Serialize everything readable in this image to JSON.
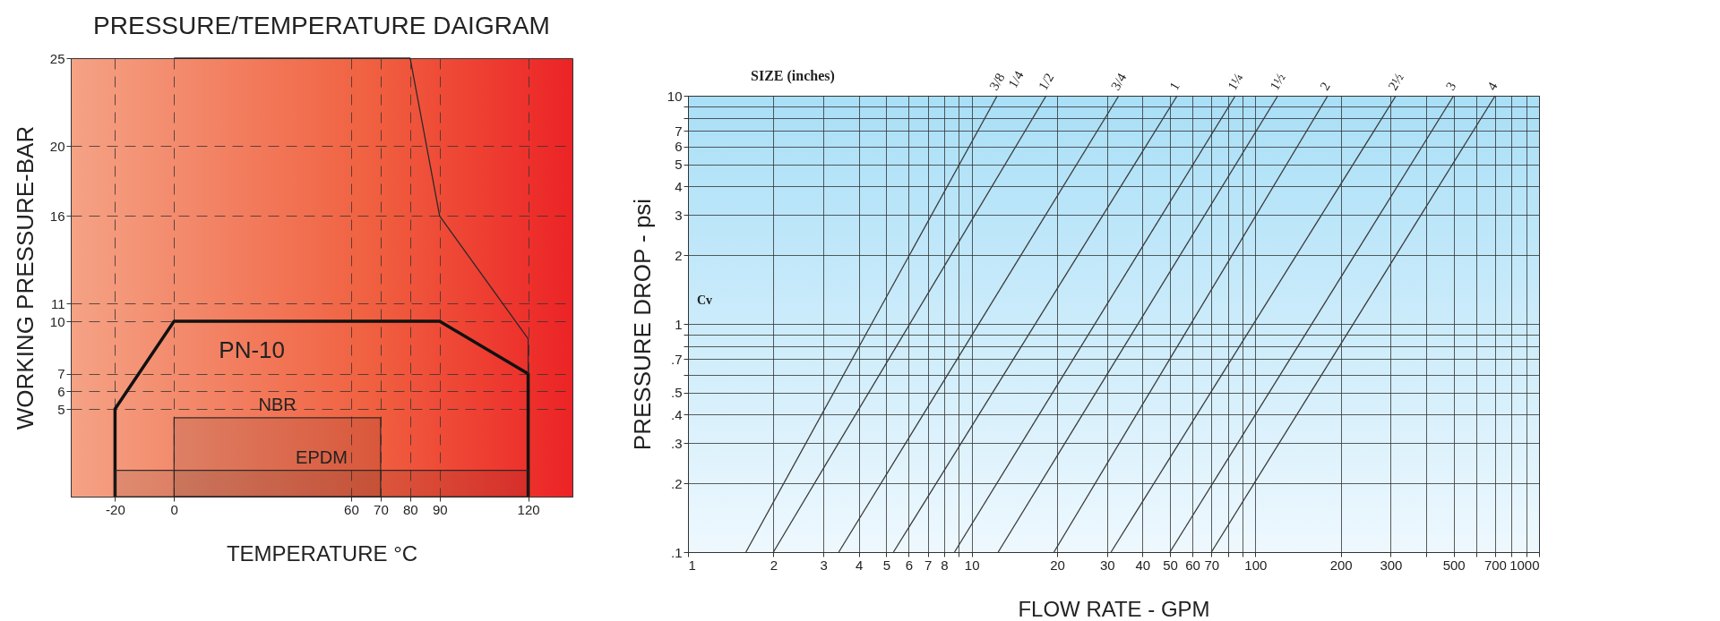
{
  "chart_data": [
    {
      "type": "line",
      "title": "PRESSURE/TEMPERATURE DAIGRAM",
      "xlabel": "TEMPERATURE °C",
      "ylabel": "WORKING PRESSURE-BAR",
      "xlim": [
        -35,
        135
      ],
      "xticks": [
        -20,
        0,
        60,
        70,
        80,
        90,
        120
      ],
      "ylim": [
        0,
        25
      ],
      "yticks": [
        5,
        6,
        7,
        10,
        11,
        16,
        20,
        25
      ],
      "grid": true,
      "series": [
        {
          "name": "PN-10",
          "color": "#111111",
          "x": [
            -20,
            -20,
            0,
            90,
            120,
            120
          ],
          "values": [
            0,
            5,
            10,
            10,
            7,
            0
          ]
        },
        {
          "color": "#2a2a2a",
          "x": [
            0,
            80,
            90,
            120,
            120
          ],
          "values": [
            25,
            25,
            16,
            9,
            7
          ]
        }
      ],
      "bands": [
        {
          "axis": "x",
          "from": 0,
          "to": 70,
          "label": "NBR"
        },
        {
          "axis": "x",
          "from": -20,
          "to": 120,
          "label": "EPDM"
        }
      ]
    },
    {
      "type": "line",
      "xlabel": "FLOW RATE - GPM",
      "ylabel": "PRESSURE DROP - psi",
      "log": "xy",
      "grid": true,
      "xlim": [
        1,
        1000
      ],
      "xticks": [
        1,
        2,
        3,
        4,
        5,
        6,
        7,
        8,
        {
          "value": 9,
          "label": null
        },
        10,
        20,
        30,
        40,
        50,
        60,
        70,
        {
          "value": 80,
          "label": null
        },
        {
          "value": 90,
          "label": null
        },
        100,
        200,
        300,
        {
          "value": 400,
          "label": null
        },
        500,
        {
          "value": 600,
          "label": null
        },
        700,
        {
          "value": 800,
          "label": null
        },
        {
          "value": 900,
          "label": null
        },
        1000
      ],
      "ylim": [
        0.1,
        10
      ],
      "yticks": [
        {
          "value": 0.1,
          "label": ".1"
        },
        {
          "value": 0.2,
          "label": ".2"
        },
        {
          "value": 0.3,
          "label": ".3"
        },
        {
          "value": 0.4,
          "label": ".4"
        },
        {
          "value": 0.5,
          "label": ".5"
        },
        {
          "value": 0.6,
          "label": null
        },
        {
          "value": 0.7,
          "label": ".7"
        },
        {
          "value": 0.8,
          "label": null
        },
        {
          "value": 0.9,
          "label": null
        },
        1,
        2,
        3,
        4,
        5,
        6,
        7,
        {
          "value": 8,
          "label": null
        },
        {
          "value": 9,
          "label": null
        },
        10
      ],
      "series": [
        {
          "name": "3/8",
          "color": "#3a3a3a",
          "x": [
            1.6,
            12.3
          ],
          "values": [
            0.1,
            10
          ]
        },
        {
          "name": "1/2",
          "color": "#3a3a3a",
          "x": [
            2,
            18.3
          ],
          "values": [
            0.1,
            10
          ]
        },
        {
          "name": "3/4",
          "color": "#3a3a3a",
          "x": [
            3.4,
            33
          ],
          "values": [
            0.1,
            10
          ]
        },
        {
          "name": "1",
          "color": "#3a3a3a",
          "x": [
            5.3,
            53
          ],
          "values": [
            0.1,
            10
          ]
        },
        {
          "name": "1¼",
          "color": "#3a3a3a",
          "x": [
            8.7,
            85
          ],
          "values": [
            0.1,
            10
          ]
        },
        {
          "name": "1½",
          "color": "#3a3a3a",
          "x": [
            12.4,
            120
          ],
          "values": [
            0.1,
            10
          ]
        },
        {
          "name": "2",
          "color": "#3a3a3a",
          "x": [
            19.5,
            180
          ],
          "values": [
            0.1,
            10
          ]
        },
        {
          "name": "2½",
          "color": "#3a3a3a",
          "x": [
            31,
            313
          ],
          "values": [
            0.1,
            10
          ]
        },
        {
          "name": "3",
          "color": "#3a3a3a",
          "x": [
            50,
            500
          ],
          "values": [
            0.1,
            10
          ]
        },
        {
          "name": "4",
          "color": "#3a3a3a",
          "x": [
            70,
            700
          ],
          "values": [
            0.1,
            10
          ]
        }
      ],
      "annotations": [
        "SIZE (inches)",
        "1/4",
        "Cv"
      ]
    }
  ]
}
